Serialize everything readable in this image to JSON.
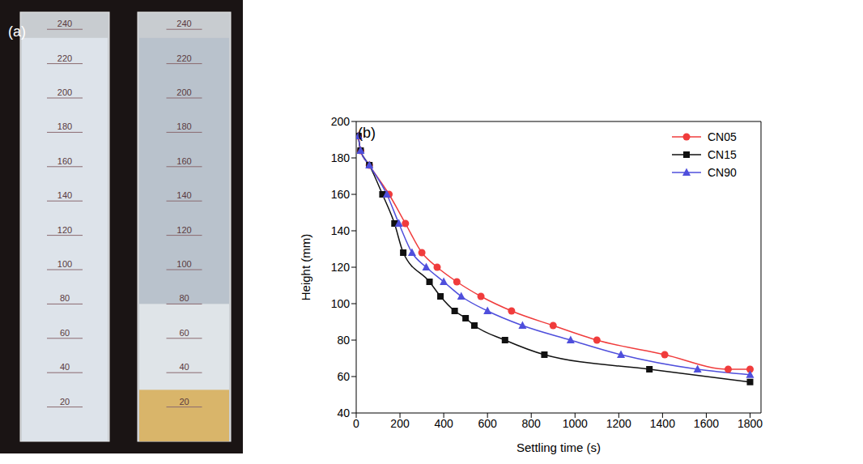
{
  "panel_a": {
    "panel_label": "(a)",
    "scale_labels": [
      20,
      40,
      60,
      80,
      100,
      120,
      140,
      160,
      180,
      200,
      220,
      240
    ],
    "scale_max": 250,
    "cylinders": [
      {
        "liquid_top": 235,
        "interface": null,
        "sediment_top": null
      },
      {
        "liquid_top": 235,
        "interface": 80,
        "sediment_top": 30
      }
    ]
  },
  "chart_data": {
    "type": "line",
    "panel_label": "(b)",
    "x_label": "Settling time (s)",
    "y_label": "Height (mm)",
    "xlim": [
      0,
      1850
    ],
    "xticks": [
      0,
      200,
      400,
      600,
      800,
      1000,
      1200,
      1400,
      1600,
      1800
    ],
    "ylim": [
      40,
      200
    ],
    "yticks": [
      40,
      60,
      80,
      100,
      120,
      140,
      160,
      180,
      200
    ],
    "grid": false,
    "legend": "upper right",
    "series": [
      {
        "name": "CN05",
        "color": "#f03c3c",
        "marker": "circle",
        "x": [
          10,
          20,
          60,
          150,
          225,
          300,
          370,
          460,
          570,
          710,
          900,
          1100,
          1410,
          1700,
          1800
        ],
        "values": [
          192,
          184,
          176,
          160,
          144,
          128,
          120,
          112,
          104,
          96,
          88,
          80,
          72,
          64,
          64
        ]
      },
      {
        "name": "CN15",
        "color": "#111111",
        "marker": "square",
        "x": [
          10,
          20,
          60,
          120,
          175,
          215,
          335,
          385,
          450,
          500,
          540,
          680,
          860,
          1340,
          1800
        ],
        "values": [
          192,
          184,
          176,
          160,
          144,
          128,
          112,
          104,
          96,
          92,
          88,
          80,
          72,
          64,
          57
        ]
      },
      {
        "name": "CN90",
        "color": "#4f4fdc",
        "marker": "triangle",
        "x": [
          10,
          20,
          60,
          140,
          195,
          255,
          320,
          400,
          480,
          600,
          760,
          980,
          1210,
          1560,
          1800
        ],
        "values": [
          192,
          184,
          176,
          160,
          144,
          128,
          120,
          112,
          104,
          96,
          88,
          80,
          72,
          64,
          61
        ]
      }
    ]
  }
}
